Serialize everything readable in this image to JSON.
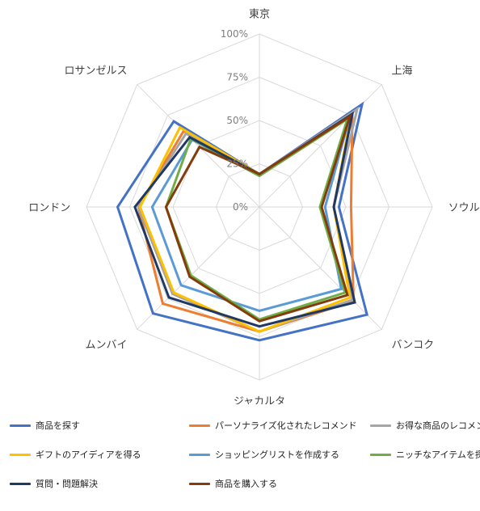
{
  "chart_data": {
    "type": "radar",
    "categories": [
      "東京",
      "上海",
      "ソウル",
      "バンコク",
      "ジャカルタ",
      "ムンバイ",
      "ロンドン",
      "ロサンゼルス"
    ],
    "r_ticks": [
      "0%",
      "25%",
      "50%",
      "75%",
      "100%"
    ],
    "r_range": [
      0,
      1
    ],
    "grid": true,
    "legend_position": "bottom",
    "series": [
      {
        "name": "商品を探す",
        "color": "#4472C4",
        "values": [
          0.19,
          0.84,
          0.46,
          0.88,
          0.77,
          0.87,
          0.82,
          0.7
        ]
      },
      {
        "name": "パーソナライズ化されたレコメンド",
        "color": "#ED7D31",
        "values": [
          0.19,
          0.76,
          0.53,
          0.77,
          0.72,
          0.79,
          0.7,
          0.62
        ]
      },
      {
        "name": "お得な商品のレコメンド",
        "color": "#A5A5A5",
        "values": [
          0.19,
          0.8,
          0.43,
          0.76,
          0.72,
          0.71,
          0.7,
          0.6
        ]
      },
      {
        "name": "ギフトのアイディアを得る",
        "color": "#FFC000",
        "values": [
          0.19,
          0.75,
          0.43,
          0.74,
          0.72,
          0.7,
          0.69,
          0.65
        ]
      },
      {
        "name": "ショッピングリストを作成する",
        "color": "#5B9BD5",
        "values": [
          0.18,
          0.74,
          0.38,
          0.67,
          0.6,
          0.64,
          0.62,
          0.55
        ]
      },
      {
        "name": "ニッチなアイテムを探す",
        "color": "#70AD47",
        "values": [
          0.18,
          0.72,
          0.35,
          0.7,
          0.65,
          0.56,
          0.54,
          0.56
        ]
      },
      {
        "name": "質問・問題解決",
        "color": "#1F3864",
        "values": [
          0.19,
          0.76,
          0.43,
          0.78,
          0.69,
          0.74,
          0.72,
          0.57
        ]
      },
      {
        "name": "商品を購入する",
        "color": "#843C0C",
        "values": [
          0.19,
          0.74,
          0.36,
          0.72,
          0.66,
          0.57,
          0.54,
          0.49
        ]
      }
    ]
  }
}
